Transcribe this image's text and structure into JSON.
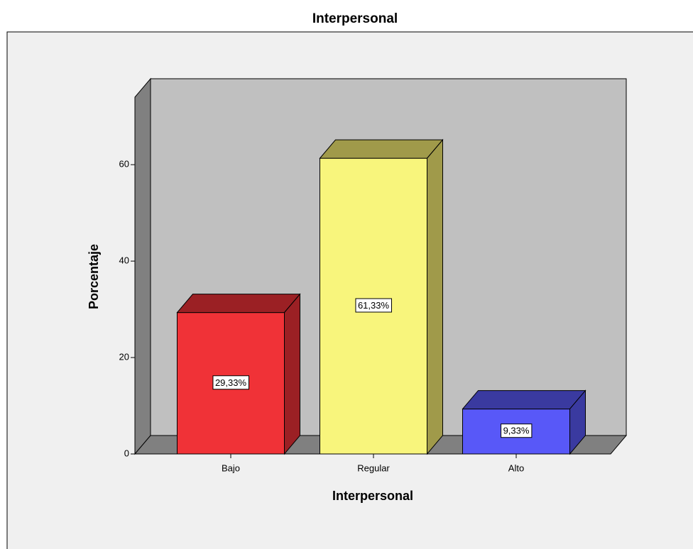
{
  "chart_data": {
    "type": "bar3d",
    "title": "Interpersonal",
    "categories": [
      "Bajo",
      "Regular",
      "Alto"
    ],
    "values": [
      29.33,
      61.33,
      9.33
    ],
    "value_labels": [
      "29,33%",
      "61,33%",
      "9,33%"
    ],
    "colors": [
      "#f03237",
      "#f8f57c",
      "#5858f8"
    ],
    "side_colors": [
      "#9b2024",
      "#a09a4a",
      "#3a3aa0"
    ],
    "xlabel": "Interpersonal",
    "ylabel": "Porcentaje",
    "ylim": [
      0,
      74
    ],
    "yticks": [
      0,
      20,
      40,
      60
    ]
  }
}
